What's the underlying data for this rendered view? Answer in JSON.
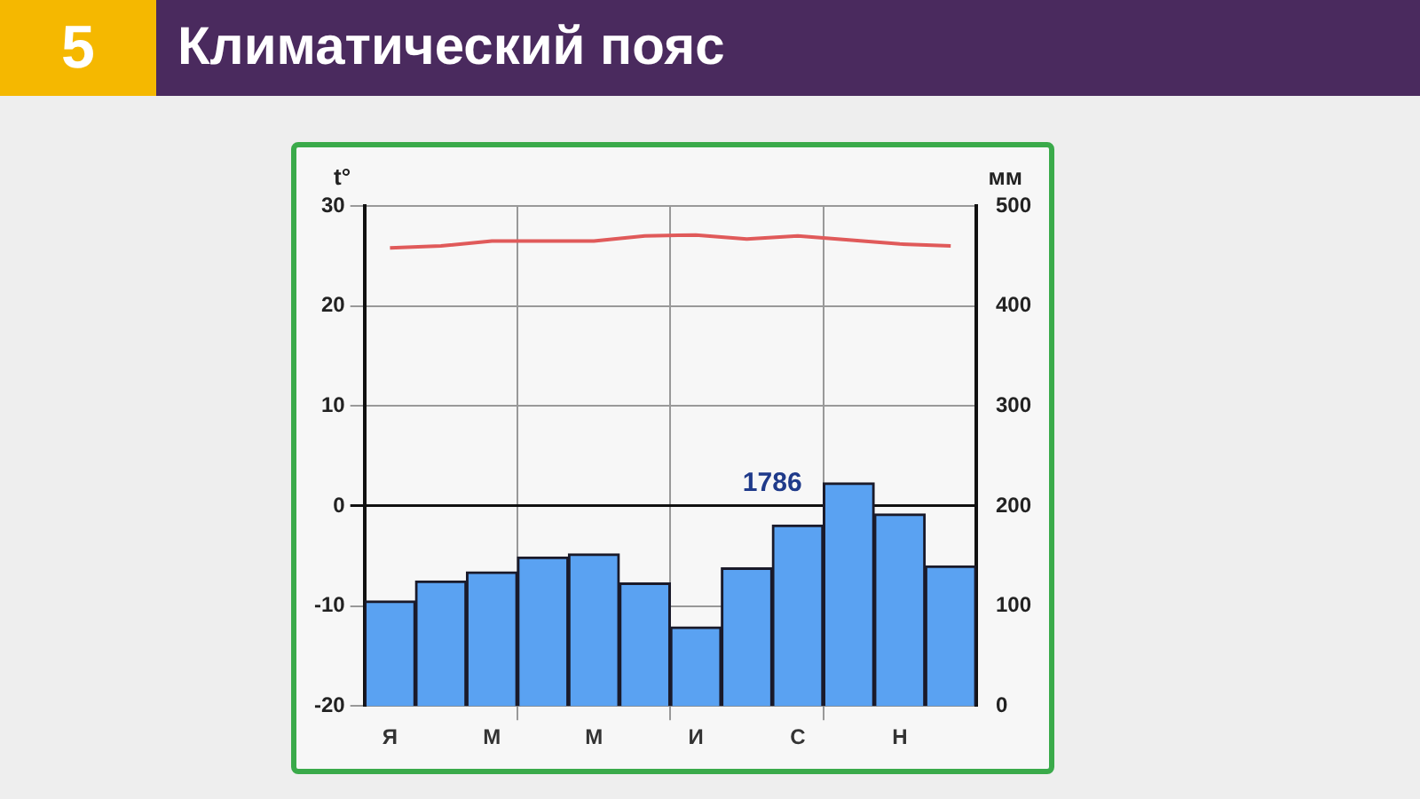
{
  "chart_data": {
    "type": "bar",
    "title": "Климатический пояс",
    "categories": [
      "Я",
      null,
      "М",
      null,
      "М",
      null,
      "И",
      null,
      "С",
      null,
      "Н",
      null
    ],
    "series": [
      {
        "axis": "y2",
        "color": "#5aa2f2",
        "values": [
          105,
          125,
          134,
          149,
          152,
          123,
          79,
          138,
          181,
          223,
          192,
          140
        ]
      },
      {
        "type": "line",
        "axis": "y",
        "color": "#e05a5a",
        "values": [
          25.8,
          26.0,
          26.5,
          26.5,
          26.5,
          27.0,
          27.1,
          26.7,
          27.0,
          26.6,
          26.2,
          26.0
        ]
      }
    ],
    "ylabel": "t°",
    "y2label": "мм",
    "ylim": [
      -20,
      30
    ],
    "yticks": [
      -20,
      -10,
      0,
      10,
      20,
      30
    ],
    "y2lim": [
      0,
      500
    ],
    "y2ticks": [
      0,
      100,
      200,
      300,
      400,
      500
    ],
    "annotations": [
      "5",
      "1786"
    ],
    "grid": true,
    "legend": false,
    "marker": "none"
  }
}
